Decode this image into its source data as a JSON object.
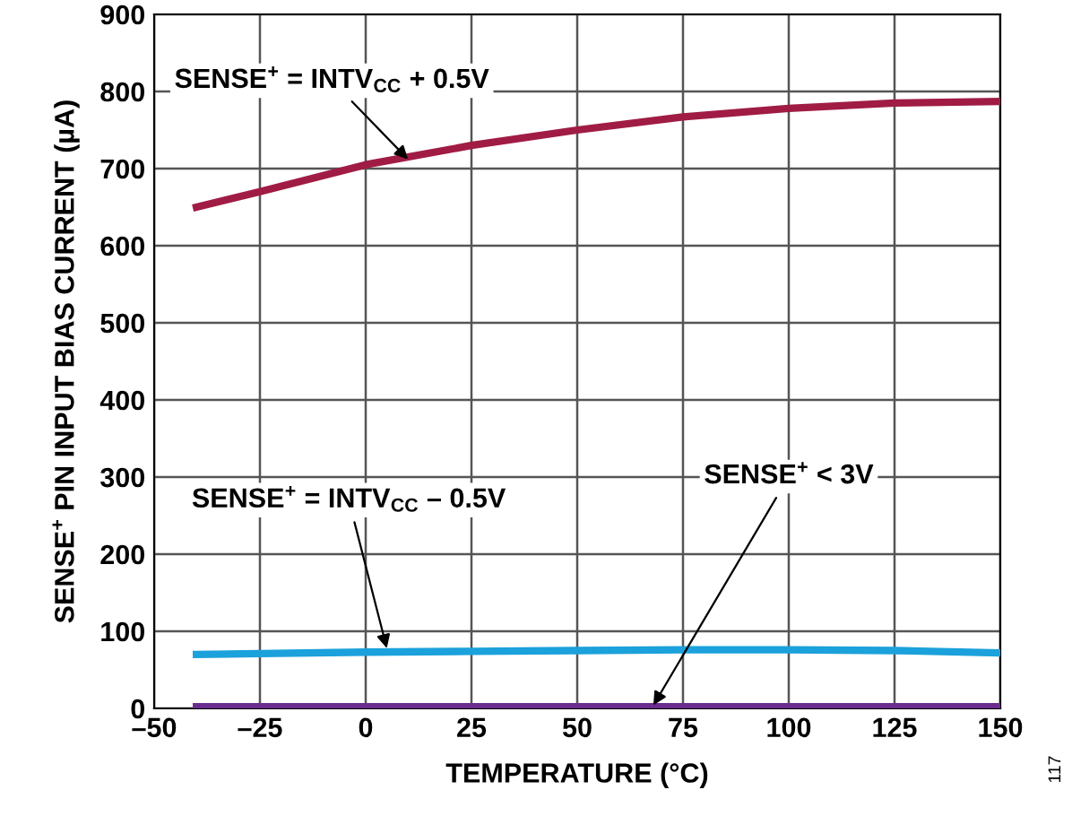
{
  "chart_data": {
    "type": "line",
    "xlabel": "TEMPERATURE (°C)",
    "ylabel": "SENSE$^{+}$ PIN INPUT BIAS CURRENT (µA)",
    "x": [
      -40,
      -25,
      0,
      25,
      50,
      75,
      100,
      125,
      150
    ],
    "series": [
      {
        "color": "#a01c45",
        "values": [
          650,
          670,
          705,
          730,
          750,
          767,
          778,
          785,
          787
        ]
      },
      {
        "color": "#1ba1db",
        "values": [
          70,
          71,
          73,
          74,
          75,
          76,
          76,
          75,
          72
        ]
      },
      {
        "color": "#6a2c8e",
        "values": [
          2,
          2,
          2,
          2,
          2,
          2,
          2,
          2,
          2
        ]
      }
    ],
    "xlim": [
      -50,
      150
    ],
    "ylim": [
      0,
      900
    ],
    "xticks": [
      {
        "value": -50,
        "label": "–50"
      },
      {
        "value": -25,
        "label": "–25"
      },
      0,
      25,
      50,
      75,
      100,
      125,
      150
    ],
    "yticks": [
      0,
      100,
      200,
      300,
      400,
      500,
      600,
      700,
      800,
      900
    ],
    "grid": true,
    "line_style": "solid",
    "marker": "none",
    "annotations": [
      {
        "text": "SENSE$^{+}$ = INTV$_{CC}$ + 0.5V",
        "x": 10,
        "y": 712
      },
      {
        "text": "SENSE$^{+}$ = INTV$_{CC}$ – 0.5V",
        "x": 5,
        "y": 78
      },
      {
        "text": "SENSE$^{+}$ < 3V",
        "x": 68,
        "y": 4
      },
      "117"
    ]
  }
}
